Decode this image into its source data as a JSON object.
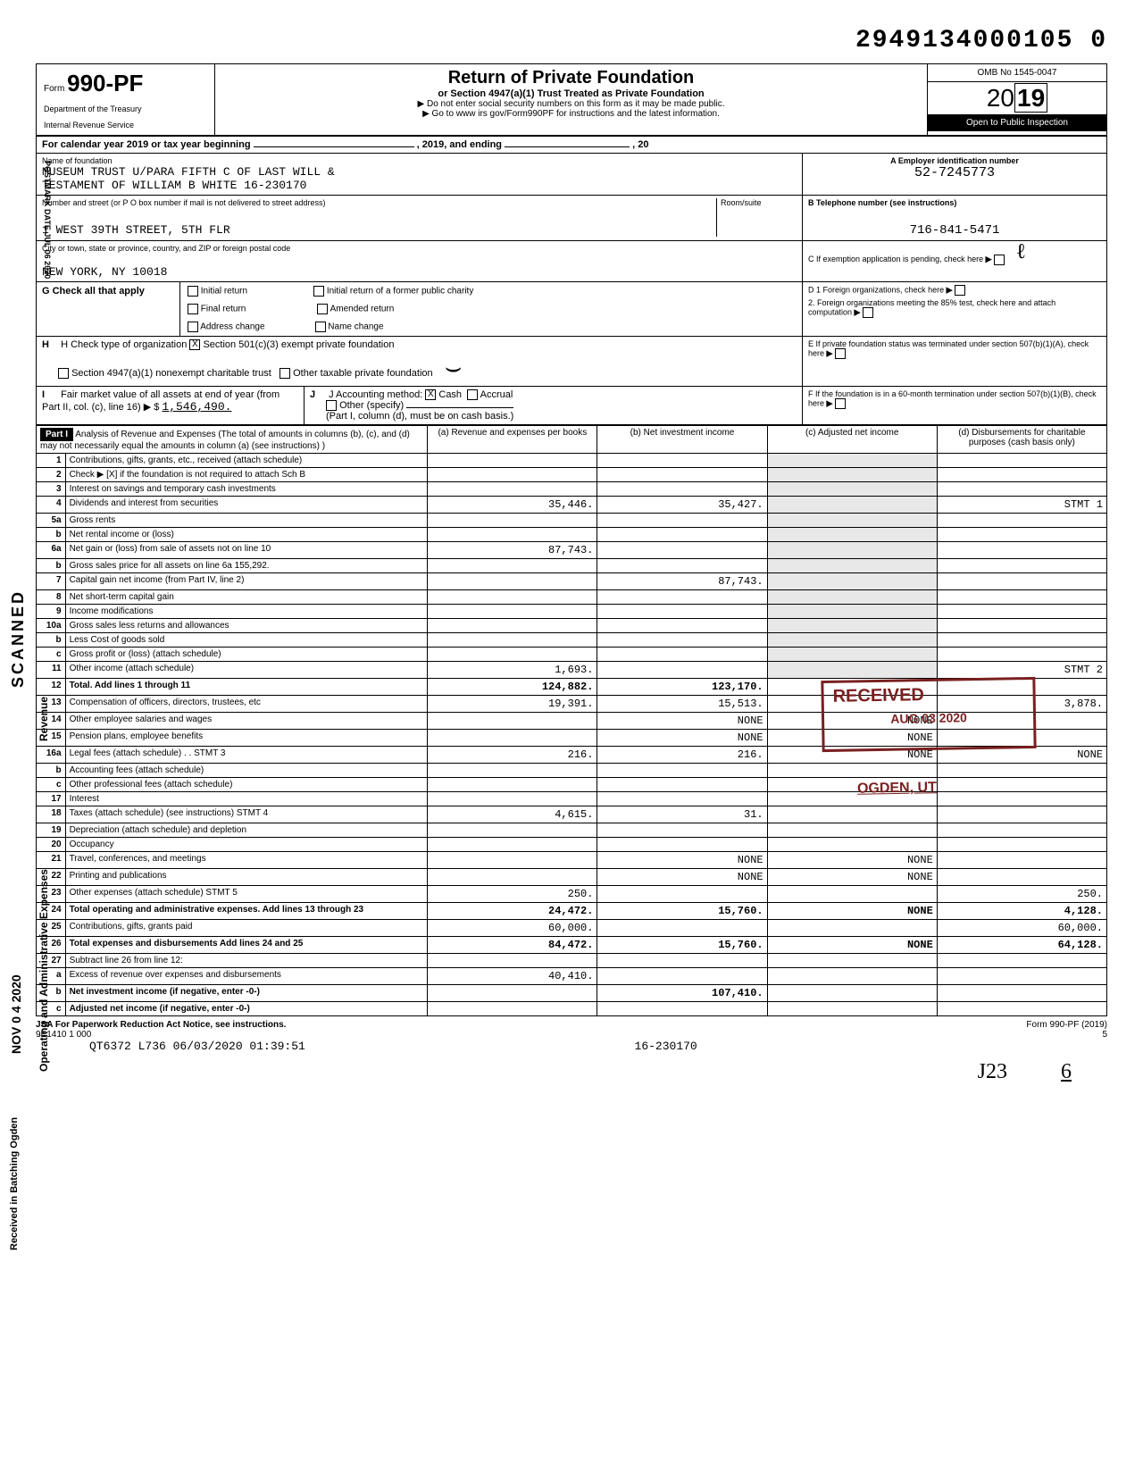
{
  "top_code": "2949134000105 0",
  "form": {
    "prefix": "Form",
    "number": "990-PF",
    "dept1": "Department of the Treasury",
    "dept2": "Internal Revenue Service"
  },
  "title": {
    "main": "Return of Private Foundation",
    "sub": "or Section 4947(a)(1) Trust Treated as Private Foundation",
    "line1": "▶ Do not enter social security numbers on this form as it may be made public.",
    "line2": "▶ Go to www irs gov/Form990PF for instructions and the latest information."
  },
  "omb": "OMB No 1545-0047",
  "year": "2019",
  "open": "Open to Public Inspection",
  "calendar": {
    "label": "For calendar year 2019 or tax year beginning",
    "mid": ", 2019, and ending",
    "end": ", 20"
  },
  "foundation": {
    "name_label": "Name of foundation",
    "name_line1": "MUSEUM TRUST U/PARA FIFTH C OF LAST WILL &",
    "name_line2": "TESTAMENT OF WILLIAM B WHITE 16-230170",
    "addr_label": "Number and street (or P O  box number if mail is not delivered to street address)",
    "room_label": "Room/suite",
    "addr": "1 WEST 39TH STREET, 5TH FLR",
    "city_label": "City or town, state or province, country, and ZIP or foreign postal code",
    "city": "NEW YORK, NY 10018"
  },
  "ein": {
    "label": "A  Employer identification number",
    "value": "52-7245773"
  },
  "phone": {
    "label": "B  Telephone number (see instructions)",
    "value": "716-841-5471"
  },
  "exemption": "C  If exemption application is pending, check here",
  "d_block": {
    "d1": "D  1  Foreign organizations, check here",
    "d2": "2. Foreign organizations meeting the 85% test, check here and attach computation"
  },
  "e_block": "E  If private foundation status was terminated under section 507(b)(1)(A), check here",
  "f_block": "F  If the foundation is in a 60-month termination under section 507(b)(1)(B), check here",
  "sectionG": {
    "label": "G  Check all that apply",
    "opts": [
      "Initial return",
      "Final return",
      "Address change",
      "Initial return of a former public charity",
      "Amended return",
      "Name change"
    ]
  },
  "sectionH": {
    "label": "H  Check type of organization",
    "opt1": "Section 501(c)(3) exempt private foundation",
    "opt2": "Section 4947(a)(1) nonexempt charitable trust",
    "opt3": "Other taxable private foundation"
  },
  "sectionI": {
    "label": "I  Fair market value of all assets at end of year (from Part II, col. (c), line 16) ▶ $",
    "value": "1,546,490."
  },
  "sectionJ": {
    "label": "J Accounting method:",
    "cash": "Cash",
    "accrual": "Accrual",
    "other": "Other (specify)",
    "note": "(Part I, column (d), must be on cash basis.)"
  },
  "part1": {
    "header": "Part I",
    "title": "Analysis of Revenue and Expenses (The total of amounts in columns (b), (c), and (d) may not necessarily equal the amounts in column (a) (see instructions) )",
    "col_a": "(a) Revenue and expenses per books",
    "col_b": "(b) Net investment income",
    "col_c": "(c) Adjusted net income",
    "col_d": "(d) Disbursements for charitable purposes (cash basis only)"
  },
  "rows": [
    {
      "n": "1",
      "desc": "Contributions, gifts, grants, etc., received (attach schedule)",
      "a": "",
      "b": "",
      "c": "",
      "d": ""
    },
    {
      "n": "2",
      "desc": "Check ▶ [X] if the foundation is not required to attach Sch B",
      "a": "",
      "b": "",
      "c": "",
      "d": ""
    },
    {
      "n": "3",
      "desc": "Interest on savings and temporary cash investments",
      "a": "",
      "b": "",
      "c": "",
      "d": ""
    },
    {
      "n": "4",
      "desc": "Dividends and interest from securities",
      "a": "35,446.",
      "b": "35,427.",
      "c": "",
      "d": "STMT 1"
    },
    {
      "n": "5a",
      "desc": "Gross rents",
      "a": "",
      "b": "",
      "c": "",
      "d": ""
    },
    {
      "n": "b",
      "desc": "Net rental income or (loss)",
      "a": "",
      "b": "",
      "c": "",
      "d": ""
    },
    {
      "n": "6a",
      "desc": "Net gain or (loss) from sale of assets not on line 10",
      "a": "87,743.",
      "b": "",
      "c": "",
      "d": ""
    },
    {
      "n": "b",
      "desc": "Gross sales price for all assets on line 6a        155,292.",
      "a": "",
      "b": "",
      "c": "",
      "d": ""
    },
    {
      "n": "7",
      "desc": "Capital gain net income (from Part IV, line 2)",
      "a": "",
      "b": "87,743.",
      "c": "",
      "d": ""
    },
    {
      "n": "8",
      "desc": "Net short-term capital gain",
      "a": "",
      "b": "",
      "c": "",
      "d": ""
    },
    {
      "n": "9",
      "desc": "Income modifications",
      "a": "",
      "b": "",
      "c": "",
      "d": ""
    },
    {
      "n": "10a",
      "desc": "Gross sales less returns and allowances",
      "a": "",
      "b": "",
      "c": "",
      "d": ""
    },
    {
      "n": "b",
      "desc": "Less Cost of goods sold",
      "a": "",
      "b": "",
      "c": "",
      "d": ""
    },
    {
      "n": "c",
      "desc": "Gross profit or (loss) (attach schedule)",
      "a": "",
      "b": "",
      "c": "",
      "d": ""
    },
    {
      "n": "11",
      "desc": "Other income (attach schedule)",
      "a": "1,693.",
      "b": "",
      "c": "",
      "d": "STMT 2"
    },
    {
      "n": "12",
      "desc": "Total. Add lines 1 through 11",
      "a": "124,882.",
      "b": "123,170.",
      "c": "",
      "d": "",
      "bold": true
    },
    {
      "n": "13",
      "desc": "Compensation of officers, directors, trustees, etc",
      "a": "19,391.",
      "b": "15,513.",
      "c": "",
      "d": "3,878."
    },
    {
      "n": "14",
      "desc": "Other employee salaries and wages",
      "a": "",
      "b": "NONE",
      "c": "NONE",
      "d": ""
    },
    {
      "n": "15",
      "desc": "Pension plans, employee benefits",
      "a": "",
      "b": "NONE",
      "c": "NONE",
      "d": ""
    },
    {
      "n": "16a",
      "desc": "Legal fees (attach schedule)  .  .  STMT 3",
      "a": "216.",
      "b": "216.",
      "c": "NONE",
      "d": "NONE"
    },
    {
      "n": "b",
      "desc": "Accounting fees (attach schedule)",
      "a": "",
      "b": "",
      "c": "",
      "d": ""
    },
    {
      "n": "c",
      "desc": "Other professional fees (attach schedule)",
      "a": "",
      "b": "",
      "c": "",
      "d": ""
    },
    {
      "n": "17",
      "desc": "Interest",
      "a": "",
      "b": "",
      "c": "",
      "d": ""
    },
    {
      "n": "18",
      "desc": "Taxes (attach schedule) (see instructions) STMT 4",
      "a": "4,615.",
      "b": "31.",
      "c": "",
      "d": ""
    },
    {
      "n": "19",
      "desc": "Depreciation (attach schedule) and depletion",
      "a": "",
      "b": "",
      "c": "",
      "d": ""
    },
    {
      "n": "20",
      "desc": "Occupancy",
      "a": "",
      "b": "",
      "c": "",
      "d": ""
    },
    {
      "n": "21",
      "desc": "Travel, conferences, and meetings",
      "a": "",
      "b": "NONE",
      "c": "NONE",
      "d": ""
    },
    {
      "n": "22",
      "desc": "Printing and publications",
      "a": "",
      "b": "NONE",
      "c": "NONE",
      "d": ""
    },
    {
      "n": "23",
      "desc": "Other expenses (attach schedule) STMT 5",
      "a": "250.",
      "b": "",
      "c": "",
      "d": "250."
    },
    {
      "n": "24",
      "desc": "Total operating and administrative expenses. Add lines 13 through 23",
      "a": "24,472.",
      "b": "15,760.",
      "c": "NONE",
      "d": "4,128.",
      "bold": true
    },
    {
      "n": "25",
      "desc": "Contributions, gifts, grants paid",
      "a": "60,000.",
      "b": "",
      "c": "",
      "d": "60,000."
    },
    {
      "n": "26",
      "desc": "Total expenses and disbursements Add lines 24 and 25",
      "a": "84,472.",
      "b": "15,760.",
      "c": "NONE",
      "d": "64,128.",
      "bold": true
    },
    {
      "n": "27",
      "desc": "Subtract line 26 from line 12:",
      "a": "",
      "b": "",
      "c": "",
      "d": ""
    },
    {
      "n": "a",
      "desc": "Excess of revenue over expenses and disbursements",
      "a": "40,410.",
      "b": "",
      "c": "",
      "d": ""
    },
    {
      "n": "b",
      "desc": "Net investment income (if negative, enter -0-)",
      "a": "",
      "b": "107,410.",
      "c": "",
      "d": "",
      "bold": true
    },
    {
      "n": "c",
      "desc": "Adjusted net income (if negative, enter -0-)",
      "a": "",
      "b": "",
      "c": "",
      "d": "",
      "bold": true
    }
  ],
  "footer": {
    "jsa": "JSA For Paperwork Reduction Act Notice, see instructions.",
    "code": "9E1410 1 000",
    "stamp": "QT6372 L736 06/03/2020 01:39:51",
    "ref": "16-230170",
    "form": "Form 990-PF (2019)",
    "page": "5",
    "sig1": "J23",
    "sig2": "6"
  },
  "stamps": {
    "received": "RECEIVED",
    "received_date": "AUG 03 2020",
    "ogden": "OGDEN, UT",
    "scanned": "SCANNED",
    "nov": "NOV 0 4 2020",
    "batching": "Received in Batching Ogden",
    "postmark": "POSTMARK DATE JUL 06 2020"
  },
  "side_labels": {
    "revenue": "Revenue",
    "expenses": "Operating and Administrative Expenses"
  }
}
